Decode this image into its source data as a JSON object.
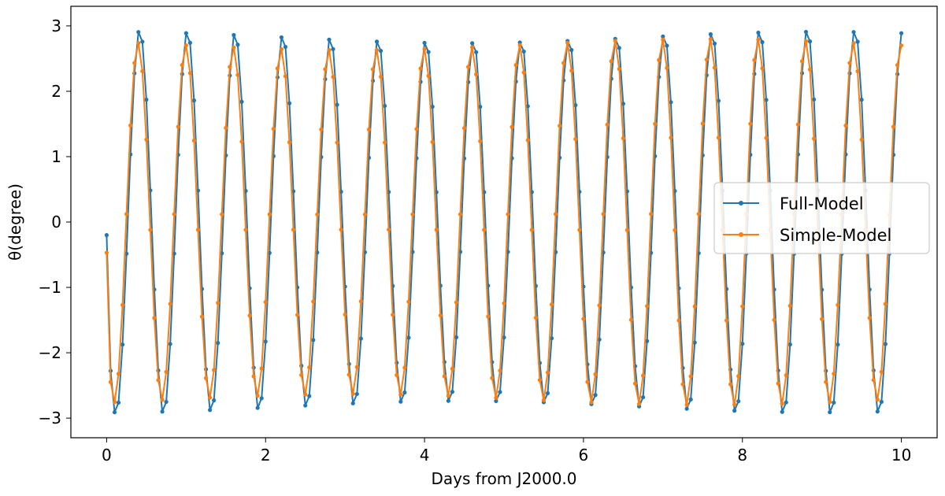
{
  "chart_data": {
    "type": "line",
    "title": "",
    "xlabel": "Days from J2000.0",
    "ylabel": "θ(degree)",
    "xlim": [
      -0.45,
      10.45
    ],
    "ylim": [
      -3.3,
      3.3
    ],
    "xticks": [
      0,
      2,
      4,
      6,
      8,
      10
    ],
    "xtick_labels": [
      "0",
      "2",
      "4",
      "6",
      "8",
      "10"
    ],
    "yticks": [
      -3,
      -2,
      -1,
      0,
      1,
      2,
      3
    ],
    "ytick_labels": [
      "−3",
      "−2",
      "−1",
      "0",
      "1",
      "2",
      "3"
    ],
    "grid": false,
    "legend_position": "center-right",
    "x_start": 0,
    "x_step": 0.05,
    "series": [
      {
        "name": "Full-Model",
        "color": "#1f77b4",
        "amplitude": 2.95,
        "period": 0.6,
        "phase_offset": 0,
        "marker": "circle"
      },
      {
        "name": "Simple-Model",
        "color": "#ff7f0e",
        "amplitude": 2.8,
        "period": 0.6,
        "phase_offset": 0.02,
        "marker": "circle"
      }
    ],
    "start_values": [
      -0.2,
      -0.47
    ]
  }
}
